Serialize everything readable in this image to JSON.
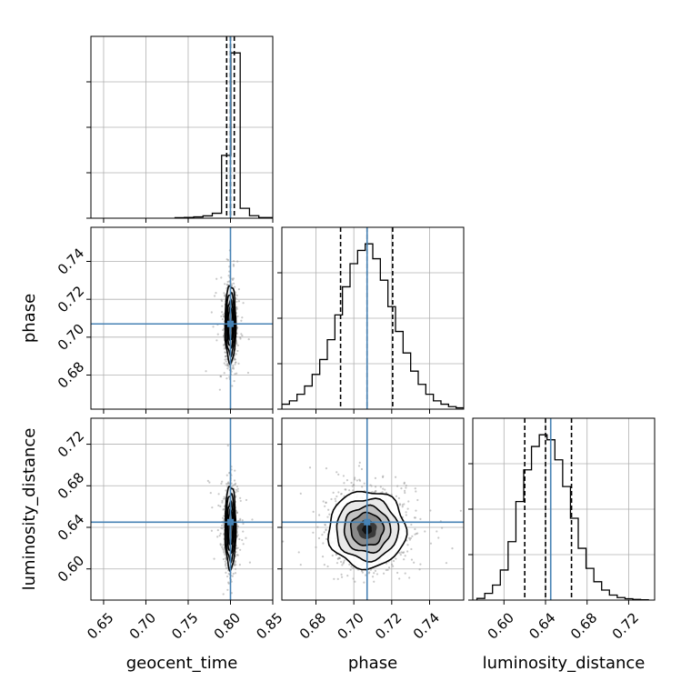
{
  "chart_data": {
    "type": "corner",
    "parameters": [
      "geocent_time",
      "phase",
      "luminosity_distance"
    ],
    "axis_labels": {
      "bottom": [
        "geocent_time",
        "phase",
        "luminosity_distance"
      ],
      "left": [
        "phase",
        "luminosity_distance"
      ]
    },
    "truths": {
      "geocent_time": 0.8,
      "phase": 0.707,
      "luminosity_distance": 0.645
    },
    "ranges": {
      "geocent_time": [
        0.635,
        0.85
      ],
      "phase": [
        0.662,
        0.758
      ],
      "luminosity_distance": [
        0.57,
        0.745
      ]
    },
    "ticks": {
      "geocent_time": {
        "values": [
          0.65,
          0.7,
          0.75,
          0.8,
          0.85
        ],
        "labels": [
          "0.65",
          "0.70",
          "0.75",
          "0.80",
          "0.85"
        ]
      },
      "phase": {
        "values": [
          0.68,
          0.7,
          0.72,
          0.74
        ],
        "labels": [
          "0.68",
          "0.70",
          "0.72",
          "0.74"
        ]
      },
      "luminosity_distance": {
        "values": [
          0.6,
          0.64,
          0.68,
          0.72
        ],
        "labels": [
          "0.60",
          "0.64",
          "0.68",
          "0.72"
        ]
      }
    },
    "quantiles": {
      "geocent_time": [
        0.7955,
        0.8,
        0.8045
      ],
      "phase": [
        0.693,
        0.707,
        0.7205
      ],
      "luminosity_distance": [
        0.62,
        0.64,
        0.665
      ]
    },
    "histograms": {
      "geocent_time": {
        "edges": [
          0.7345,
          0.7455,
          0.7565,
          0.7675,
          0.7785,
          0.7895,
          0.8005,
          0.8115,
          0.8225,
          0.8335,
          0.85
        ],
        "counts": [
          0.003,
          0.005,
          0.008,
          0.014,
          0.03,
          0.38,
          1.0,
          0.06,
          0.015,
          0.004
        ]
      },
      "phase": {
        "edges": [
          0.662,
          0.666,
          0.67,
          0.674,
          0.678,
          0.682,
          0.686,
          0.69,
          0.694,
          0.698,
          0.702,
          0.706,
          0.71,
          0.714,
          0.718,
          0.722,
          0.726,
          0.73,
          0.734,
          0.738,
          0.742,
          0.746,
          0.75,
          0.754,
          0.758
        ],
        "counts": [
          0.03,
          0.05,
          0.09,
          0.14,
          0.21,
          0.3,
          0.42,
          0.57,
          0.74,
          0.88,
          0.96,
          1.0,
          0.91,
          0.78,
          0.62,
          0.47,
          0.34,
          0.23,
          0.15,
          0.09,
          0.05,
          0.03,
          0.015,
          0.008
        ]
      },
      "luminosity_distance": {
        "edges": [
          0.574,
          0.5815,
          0.589,
          0.5965,
          0.604,
          0.6115,
          0.619,
          0.6265,
          0.634,
          0.6415,
          0.649,
          0.6565,
          0.664,
          0.6715,
          0.679,
          0.6865,
          0.694,
          0.7015,
          0.709,
          0.7165,
          0.724,
          0.7315,
          0.739
        ],
        "counts": [
          0.01,
          0.04,
          0.09,
          0.18,
          0.35,
          0.59,
          0.78,
          0.92,
          0.99,
          0.96,
          0.84,
          0.68,
          0.49,
          0.31,
          0.19,
          0.11,
          0.06,
          0.03,
          0.015,
          0.008,
          0.004,
          0.002
        ]
      }
    },
    "posterior_2d": {
      "geocent_time_vs_phase": {
        "mean": [
          0.8,
          0.707
        ],
        "sd": [
          0.0032,
          0.0102
        ]
      },
      "geocent_time_vs_luminosity_distance": {
        "mean": [
          0.8,
          0.64
        ],
        "sd": [
          0.0032,
          0.02
        ]
      },
      "phase_vs_luminosity_distance": {
        "mean": [
          0.707,
          0.638
        ],
        "sd": [
          0.0102,
          0.0185
        ]
      }
    },
    "colors": {
      "truth": "#4682b4",
      "hist": "#000000",
      "grid": "#b0b0b0",
      "points": "#9a9a9a"
    },
    "grid": true,
    "legend": "none"
  }
}
